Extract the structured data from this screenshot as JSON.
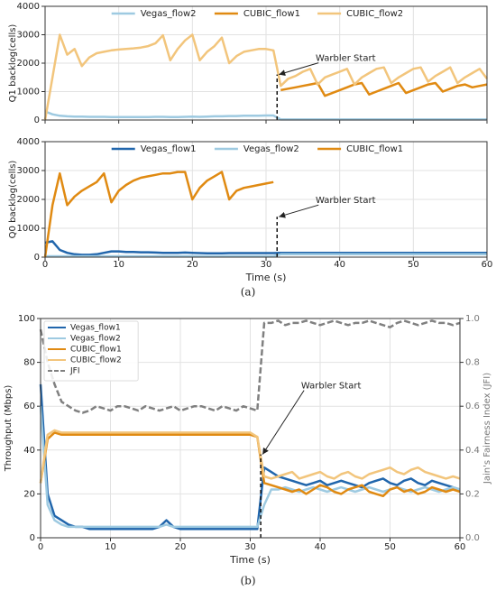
{
  "chart_data": [
    {
      "type": "line",
      "y_label": "Q1 backlog(cells)",
      "xlim": [
        0,
        60
      ],
      "xticks": [
        0,
        10,
        20,
        30,
        40,
        50,
        60
      ],
      "ylim": [
        0,
        4000
      ],
      "yticks": [
        0,
        1000,
        2000,
        3000,
        4000
      ],
      "grid": true,
      "legend": "upper center",
      "x": [
        0,
        1,
        2,
        3,
        4,
        5,
        6,
        7,
        8,
        9,
        10,
        11,
        12,
        13,
        14,
        15,
        16,
        17,
        18,
        19,
        20,
        21,
        22,
        23,
        24,
        25,
        26,
        27,
        28,
        29,
        30,
        31,
        32,
        33,
        34,
        35,
        36,
        37,
        38,
        39,
        40,
        41,
        42,
        43,
        44,
        45,
        46,
        47,
        48,
        49,
        50,
        51,
        52,
        53,
        54,
        55,
        56,
        57,
        58,
        59,
        60
      ],
      "series": [
        {
          "name": "Vegas_flow2",
          "color": "#9ecae1",
          "values": [
            300,
            200,
            150,
            130,
            120,
            120,
            110,
            110,
            110,
            100,
            100,
            100,
            100,
            100,
            100,
            110,
            110,
            100,
            100,
            110,
            120,
            110,
            120,
            130,
            130,
            140,
            140,
            150,
            150,
            150,
            160,
            160,
            20,
            20,
            20,
            20,
            20,
            20,
            20,
            20,
            20,
            20,
            20,
            20,
            20,
            20,
            20,
            20,
            20,
            20,
            20,
            20,
            20,
            20,
            20,
            20,
            20,
            20,
            20,
            20,
            20
          ]
        },
        {
          "name": "CUBIC_flow1",
          "color": "#e08a12",
          "values": [
            null,
            null,
            null,
            null,
            null,
            null,
            null,
            null,
            null,
            null,
            null,
            null,
            null,
            null,
            null,
            null,
            null,
            null,
            null,
            null,
            null,
            null,
            null,
            null,
            null,
            null,
            null,
            null,
            null,
            null,
            null,
            null,
            1050,
            1100,
            1150,
            1200,
            1250,
            1300,
            850,
            950,
            1050,
            1150,
            1250,
            1300,
            900,
            1000,
            1100,
            1200,
            1300,
            950,
            1050,
            1150,
            1250,
            1300,
            1000,
            1100,
            1200,
            1250,
            1150,
            1200,
            1250
          ]
        },
        {
          "name": "CUBIC_flow2",
          "color": "#f2c57c",
          "values": [
            0,
            1500,
            3000,
            2300,
            2500,
            1900,
            2200,
            2350,
            2400,
            2450,
            2480,
            2500,
            2520,
            2550,
            2600,
            2700,
            2980,
            2100,
            2500,
            2800,
            3000,
            2100,
            2400,
            2600,
            2900,
            2000,
            2250,
            2400,
            2450,
            2500,
            2500,
            2450,
            1200,
            1450,
            1550,
            1700,
            1800,
            1250,
            1500,
            1600,
            1700,
            1800,
            1250,
            1500,
            1650,
            1800,
            1850,
            1300,
            1500,
            1650,
            1800,
            1850,
            1350,
            1550,
            1700,
            1850,
            1300,
            1500,
            1650,
            1800,
            1450
          ]
        }
      ],
      "annotation": {
        "text": "Warbler Start",
        "x": 31.5,
        "y": 1600
      }
    },
    {
      "type": "line",
      "y_label": "Q0 backlog(cells)",
      "x_label": "Time (s)",
      "xlim": [
        0,
        60
      ],
      "xticks": [
        0,
        10,
        20,
        30,
        40,
        50,
        60
      ],
      "ylim": [
        0,
        4000
      ],
      "yticks": [
        0,
        1000,
        2000,
        3000,
        4000
      ],
      "grid": true,
      "legend": "upper center",
      "x": [
        0,
        1,
        2,
        3,
        4,
        5,
        6,
        7,
        8,
        9,
        10,
        11,
        12,
        13,
        14,
        15,
        16,
        17,
        18,
        19,
        20,
        21,
        22,
        23,
        24,
        25,
        26,
        27,
        28,
        29,
        30,
        31,
        32,
        33,
        34,
        35,
        36,
        37,
        38,
        39,
        40,
        41,
        42,
        43,
        44,
        45,
        46,
        47,
        48,
        49,
        50,
        51,
        52,
        53,
        54,
        55,
        56,
        57,
        58,
        59,
        60
      ],
      "series": [
        {
          "name": "Vegas_flow1",
          "color": "#2166ac",
          "values": [
            500,
            550,
            250,
            150,
            100,
            80,
            80,
            100,
            150,
            200,
            200,
            180,
            180,
            170,
            170,
            160,
            150,
            150,
            150,
            160,
            150,
            140,
            130,
            130,
            130,
            140,
            140,
            140,
            140,
            140,
            140,
            140,
            150,
            150,
            150,
            150,
            150,
            150,
            150,
            150,
            150,
            150,
            150,
            150,
            150,
            150,
            150,
            150,
            150,
            150,
            150,
            150,
            150,
            150,
            150,
            150,
            150,
            150,
            150,
            150,
            150
          ]
        },
        {
          "name": "Vegas_flow2",
          "color": "#9ecae1",
          "values": [
            30,
            30,
            30,
            30,
            30,
            30,
            30,
            30,
            30,
            30,
            30,
            30,
            30,
            30,
            30,
            30,
            30,
            30,
            30,
            30,
            30,
            30,
            30,
            30,
            30,
            30,
            30,
            30,
            30,
            30,
            30,
            30,
            100,
            100,
            100,
            100,
            100,
            100,
            100,
            100,
            100,
            100,
            100,
            100,
            100,
            100,
            100,
            100,
            100,
            100,
            100,
            100,
            100,
            100,
            100,
            100,
            100,
            100,
            100,
            100,
            100
          ]
        },
        {
          "name": "CUBIC_flow1",
          "color": "#e08a12",
          "values": [
            0,
            1800,
            2900,
            1800,
            2100,
            2300,
            2450,
            2600,
            2900,
            1900,
            2300,
            2500,
            2650,
            2750,
            2800,
            2850,
            2900,
            2900,
            2950,
            2950,
            2000,
            2400,
            2650,
            2800,
            2950,
            2000,
            2300,
            2400,
            2450,
            2500,
            2550,
            2600,
            null,
            null,
            null,
            null,
            null,
            null,
            null,
            null,
            null,
            null,
            null,
            null,
            null,
            null,
            null,
            null,
            null,
            null,
            null,
            null,
            null,
            null,
            null,
            null,
            null,
            null,
            null,
            null,
            null
          ]
        }
      ],
      "annotation": {
        "text": "Warbler Start",
        "x": 31.5,
        "y": 1400
      }
    },
    {
      "type": "line",
      "y_label": "Throughput (Mbps)",
      "y2_label": "Jain's Fairness Index (JFI)",
      "x_label": "Time (s)",
      "xlim": [
        0,
        60
      ],
      "xticks": [
        0,
        10,
        20,
        30,
        40,
        50,
        60
      ],
      "ylim": [
        0,
        100
      ],
      "yticks": [
        0,
        20,
        40,
        60,
        80,
        100
      ],
      "y2lim": [
        0,
        1
      ],
      "y2ticks": [
        {
          "value": 0,
          "label": "0.0"
        },
        0.2,
        0.4,
        0.6,
        0.8,
        {
          "value": 1,
          "label": "1.0"
        }
      ],
      "grid": true,
      "legend": "upper left",
      "x": [
        0,
        1,
        2,
        3,
        4,
        5,
        6,
        7,
        8,
        9,
        10,
        11,
        12,
        13,
        14,
        15,
        16,
        17,
        18,
        19,
        20,
        21,
        22,
        23,
        24,
        25,
        26,
        27,
        28,
        29,
        30,
        31,
        32,
        33,
        34,
        35,
        36,
        37,
        38,
        39,
        40,
        41,
        42,
        43,
        44,
        45,
        46,
        47,
        48,
        49,
        50,
        51,
        52,
        53,
        54,
        55,
        56,
        57,
        58,
        59,
        60
      ],
      "series": [
        {
          "name": "Vegas_flow1",
          "color": "#2166ac",
          "values": [
            70,
            20,
            10,
            8,
            6,
            5,
            5,
            4,
            4,
            4,
            4,
            4,
            4,
            4,
            4,
            4,
            4,
            5,
            8,
            5,
            4,
            4,
            4,
            4,
            4,
            4,
            4,
            4,
            4,
            4,
            4,
            4,
            32,
            30,
            28,
            27,
            26,
            25,
            24,
            25,
            26,
            24,
            25,
            26,
            25,
            24,
            23,
            25,
            26,
            27,
            25,
            24,
            26,
            27,
            25,
            24,
            26,
            25,
            24,
            23,
            22
          ]
        },
        {
          "name": "Vegas_flow2",
          "color": "#9ecae1",
          "values": [
            60,
            15,
            8,
            6,
            5,
            5,
            5,
            5,
            5,
            5,
            5,
            5,
            5,
            5,
            5,
            5,
            5,
            5,
            6,
            5,
            5,
            5,
            5,
            5,
            5,
            5,
            5,
            5,
            5,
            5,
            5,
            5,
            15,
            22,
            22,
            23,
            22,
            21,
            22,
            23,
            22,
            21,
            22,
            23,
            22,
            21,
            22,
            23,
            22,
            21,
            22,
            23,
            22,
            21,
            22,
            23,
            22,
            21,
            22,
            23,
            22
          ]
        },
        {
          "name": "CUBIC_flow1",
          "color": "#e08a12",
          "values": [
            25,
            45,
            48,
            47,
            47,
            47,
            47,
            47,
            47,
            47,
            47,
            47,
            47,
            47,
            47,
            47,
            47,
            47,
            47,
            47,
            47,
            47,
            47,
            47,
            47,
            47,
            47,
            47,
            47,
            47,
            47,
            46,
            25,
            24,
            23,
            22,
            21,
            22,
            20,
            22,
            24,
            23,
            21,
            20,
            22,
            23,
            24,
            21,
            20,
            19,
            22,
            23,
            21,
            22,
            20,
            21,
            23,
            22,
            21,
            22,
            21
          ]
        },
        {
          "name": "CUBIC_flow2",
          "color": "#f2c57c",
          "values": [
            25,
            47,
            49,
            48,
            48,
            48,
            48,
            48,
            48,
            48,
            48,
            48,
            48,
            48,
            48,
            48,
            48,
            48,
            48,
            48,
            48,
            48,
            48,
            48,
            48,
            48,
            48,
            48,
            48,
            48,
            48,
            46,
            28,
            27,
            28,
            29,
            30,
            27,
            28,
            29,
            30,
            28,
            27,
            29,
            30,
            28,
            27,
            29,
            30,
            31,
            32,
            30,
            29,
            31,
            32,
            30,
            29,
            28,
            27,
            28,
            27
          ]
        },
        {
          "name": "JFI",
          "color": "#808080",
          "dashed": true,
          "axis": "y2",
          "values": [
            0.95,
            0.8,
            0.7,
            0.62,
            0.6,
            0.58,
            0.57,
            0.58,
            0.6,
            0.59,
            0.58,
            0.6,
            0.6,
            0.59,
            0.58,
            0.6,
            0.59,
            0.58,
            0.59,
            0.6,
            0.58,
            0.59,
            0.6,
            0.6,
            0.59,
            0.58,
            0.6,
            0.59,
            0.58,
            0.6,
            0.59,
            0.58,
            0.98,
            0.98,
            0.99,
            0.97,
            0.98,
            0.98,
            0.99,
            0.98,
            0.97,
            0.98,
            0.99,
            0.98,
            0.97,
            0.98,
            0.98,
            0.99,
            0.98,
            0.97,
            0.96,
            0.98,
            0.99,
            0.98,
            0.97,
            0.98,
            0.99,
            0.98,
            0.98,
            0.97,
            0.98
          ]
        }
      ],
      "annotation": {
        "text": "Warbler Start",
        "x": 31.5,
        "y": 38
      }
    }
  ],
  "panel_labels": [
    "(a)",
    "(b)"
  ]
}
